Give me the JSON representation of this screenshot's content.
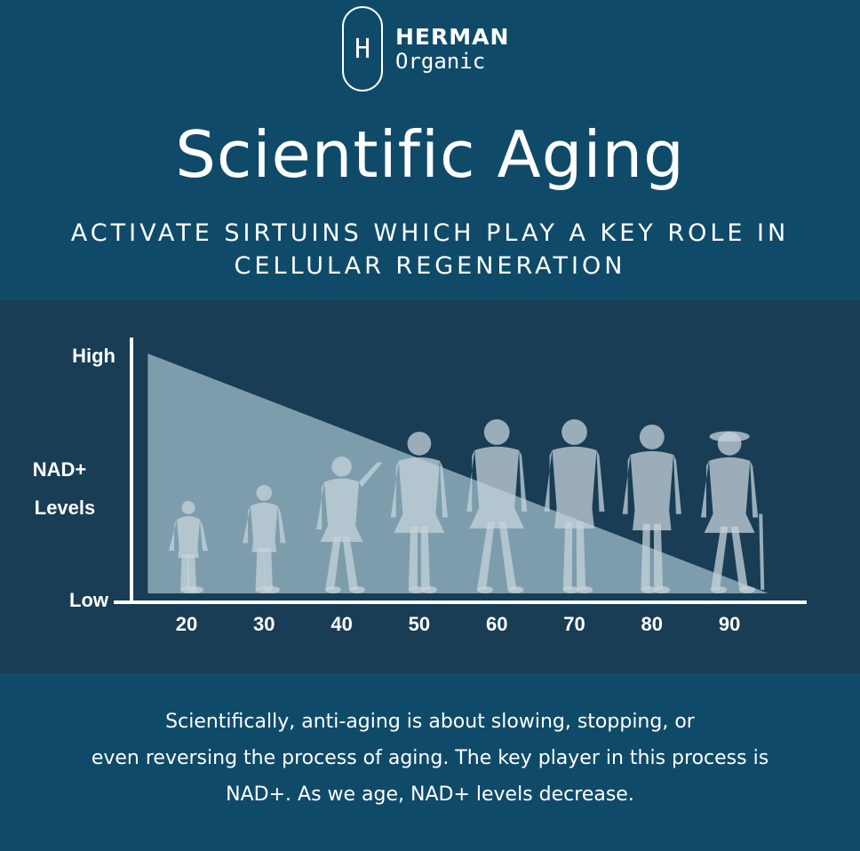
{
  "brand": {
    "badge": "H",
    "name": "HERMAN",
    "sub": "Organic"
  },
  "title": "Scientific Aging",
  "subtitle_line1": "ACTIVATE SIRTUINS WHICH PLAY A KEY ROLE IN",
  "subtitle_line2": "CELLULAR REGENERATION",
  "chart_data": {
    "type": "area",
    "ylabel": "NAD+ Levels",
    "y_tick_labels": [
      "High",
      "Low"
    ],
    "categories": [
      "20",
      "30",
      "40",
      "50",
      "60",
      "70",
      "80",
      "90"
    ],
    "series": [
      {
        "x": [
          15,
          95
        ],
        "y": [
          1,
          0
        ]
      }
    ],
    "grid": false,
    "colors": {
      "area": "#8faebd",
      "silhouette": "#c5d3db",
      "axis": "#ffffff"
    }
  },
  "footer_lines": [
    "Scientifically, anti-aging is about slowing, stopping, or",
    "even reversing the process of aging. The key player in this process is",
    "NAD+. As we age, NAD+ levels decrease."
  ]
}
